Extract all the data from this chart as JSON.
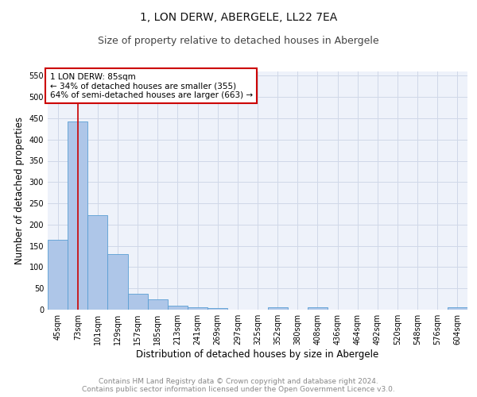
{
  "title": "1, LON DERW, ABERGELE, LL22 7EA",
  "subtitle": "Size of property relative to detached houses in Abergele",
  "xlabel": "Distribution of detached houses by size in Abergele",
  "ylabel": "Number of detached properties",
  "categories": [
    "45sqm",
    "73sqm",
    "101sqm",
    "129sqm",
    "157sqm",
    "185sqm",
    "213sqm",
    "241sqm",
    "269sqm",
    "297sqm",
    "325sqm",
    "352sqm",
    "380sqm",
    "408sqm",
    "436sqm",
    "464sqm",
    "492sqm",
    "520sqm",
    "548sqm",
    "576sqm",
    "604sqm"
  ],
  "values": [
    165,
    443,
    222,
    130,
    37,
    25,
    10,
    6,
    4,
    0,
    0,
    5,
    0,
    5,
    0,
    0,
    0,
    0,
    0,
    0,
    5
  ],
  "bar_color": "#aec6e8",
  "bar_edge_color": "#5a9fd4",
  "grid_color": "#d0d8e8",
  "background_color": "#eef2fa",
  "vline_x": 1,
  "vline_color": "#cc0000",
  "annotation_text": "1 LON DERW: 85sqm\n← 34% of detached houses are smaller (355)\n64% of semi-detached houses are larger (663) →",
  "annotation_box_color": "#ffffff",
  "annotation_border_color": "#cc0000",
  "ylim": [
    0,
    560
  ],
  "yticks": [
    0,
    50,
    100,
    150,
    200,
    250,
    300,
    350,
    400,
    450,
    500,
    550
  ],
  "footer": "Contains HM Land Registry data © Crown copyright and database right 2024.\nContains public sector information licensed under the Open Government Licence v3.0.",
  "title_fontsize": 10,
  "subtitle_fontsize": 9,
  "xlabel_fontsize": 8.5,
  "ylabel_fontsize": 8.5,
  "tick_fontsize": 7,
  "annotation_fontsize": 7.5,
  "footer_fontsize": 6.5
}
